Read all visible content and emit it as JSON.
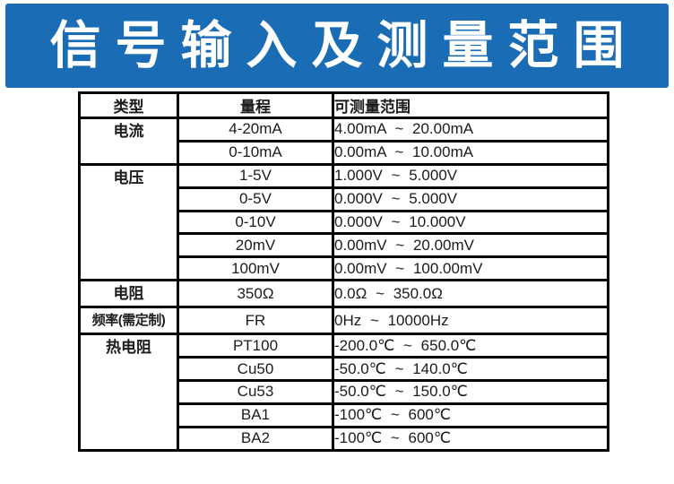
{
  "banner": {
    "title": "信号输入及测量范围",
    "bg_color": "#1a6db5",
    "text_color": "#ffffff"
  },
  "table": {
    "border_color": "#000000",
    "headers": {
      "type": "类型",
      "range": "量程",
      "measurable": "可测量范围"
    },
    "groups": [
      {
        "type": "电流",
        "rows": [
          {
            "range": "4-20mA",
            "measurable": "4.00mA ~ 20.00mA"
          },
          {
            "range": "0-10mA",
            "measurable": "0.00mA ~ 10.00mA"
          }
        ]
      },
      {
        "type": "电压",
        "rows": [
          {
            "range": "1-5V",
            "measurable": "1.000V ~ 5.000V"
          },
          {
            "range": "0-5V",
            "measurable": "0.000V ~ 5.000V"
          },
          {
            "range": "0-10V",
            "measurable": "0.000V ~ 10.000V"
          },
          {
            "range": "20mV",
            "measurable": "0.00mV ~ 20.00mV"
          },
          {
            "range": "100mV",
            "measurable": "0.00mV ~ 100.00mV"
          }
        ]
      },
      {
        "type": "电阻",
        "rows": [
          {
            "range": "350Ω",
            "measurable": "0.0Ω ~ 350.0Ω"
          }
        ]
      },
      {
        "type": "频率(需定制)",
        "rows": [
          {
            "range": "FR",
            "measurable": "0Hz ~ 10000Hz"
          }
        ]
      },
      {
        "type": "热电阻",
        "rows": [
          {
            "range": "PT100",
            "measurable": "-200.0℃ ~ 650.0℃"
          },
          {
            "range": "Cu50",
            "measurable": "-50.0℃ ~ 140.0℃"
          },
          {
            "range": "Cu53",
            "measurable": "-50.0℃ ~ 150.0℃"
          },
          {
            "range": "BA1",
            "measurable": "-100℃ ~ 600℃"
          },
          {
            "range": "BA2",
            "measurable": "-100℃ ~ 600℃"
          }
        ]
      }
    ]
  }
}
